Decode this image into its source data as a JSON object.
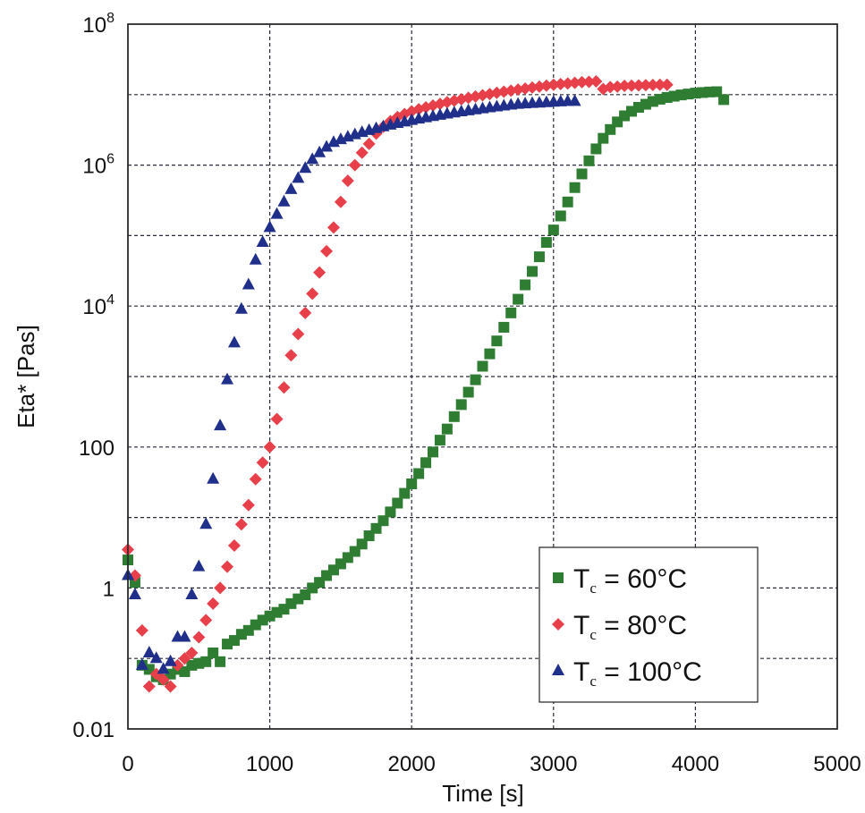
{
  "chart_data": {
    "type": "scatter",
    "title": "",
    "xlabel": "Time [s]",
    "ylabel": "Eta* [Pas]",
    "xlim": [
      0,
      5000
    ],
    "ylim": [
      0.01,
      100000000
    ],
    "yscale": "log",
    "grid": true,
    "legend_position": "bottom-right",
    "x_ticks": [
      "0",
      "1000",
      "2000",
      "3000",
      "4000",
      "5000"
    ],
    "y_ticks": [
      {
        "value": 0.01,
        "label": "0.01"
      },
      {
        "value": 1,
        "label": "1"
      },
      {
        "value": 100,
        "label": "100"
      },
      {
        "value": 10000,
        "base": "10",
        "exp": "4"
      },
      {
        "value": 1000000,
        "base": "10",
        "exp": "6"
      },
      {
        "value": 100000000,
        "base": "10",
        "exp": "8"
      }
    ],
    "series": [
      {
        "name": "60°C",
        "legend": {
          "prefix": "T",
          "sub": "c",
          "text": " = 60°C"
        },
        "marker": "square",
        "color": "#2e7d32",
        "x": [
          0,
          50,
          100,
          150,
          200,
          250,
          300,
          350,
          400,
          450,
          500,
          550,
          600,
          650,
          700,
          750,
          800,
          850,
          900,
          950,
          1000,
          1050,
          1100,
          1150,
          1200,
          1250,
          1300,
          1350,
          1400,
          1450,
          1500,
          1550,
          1600,
          1650,
          1700,
          1750,
          1800,
          1850,
          1900,
          1950,
          2000,
          2050,
          2100,
          2150,
          2200,
          2250,
          2300,
          2350,
          2400,
          2450,
          2500,
          2550,
          2600,
          2650,
          2700,
          2750,
          2800,
          2850,
          2900,
          2950,
          3000,
          3050,
          3100,
          3150,
          3200,
          3250,
          3300,
          3350,
          3400,
          3450,
          3500,
          3550,
          3600,
          3650,
          3700,
          3750,
          3800,
          3850,
          3900,
          3950,
          4000,
          4050,
          4100,
          4150,
          4200
        ],
        "y": [
          2.5,
          1.2,
          0.08,
          0.07,
          0.055,
          0.05,
          0.06,
          0.07,
          0.065,
          0.08,
          0.085,
          0.09,
          0.12,
          0.09,
          0.16,
          0.18,
          0.22,
          0.25,
          0.3,
          0.35,
          0.4,
          0.45,
          0.5,
          0.6,
          0.7,
          0.8,
          1.0,
          1.2,
          1.5,
          1.8,
          2.2,
          2.7,
          3.3,
          4.2,
          5.5,
          7,
          9,
          12,
          16,
          22,
          30,
          42,
          60,
          85,
          125,
          180,
          270,
          400,
          600,
          900,
          1400,
          2100,
          3200,
          5000,
          8000,
          12500,
          20000,
          31000,
          50000,
          80000,
          120000,
          190000,
          300000,
          480000,
          750000,
          1150000,
          1700000,
          2400000,
          3200000,
          4100000,
          5000000,
          5800000,
          6600000,
          7300000,
          8000000,
          8600000,
          9100000,
          9500000,
          9900000,
          10200000,
          10500000,
          10700000,
          10900000,
          11000000,
          8500000
        ]
      },
      {
        "name": "80°C",
        "legend": {
          "prefix": "T",
          "sub": "c",
          "text": " = 80°C"
        },
        "marker": "diamond",
        "color": "#e8404a",
        "x": [
          0,
          50,
          100,
          150,
          200,
          250,
          300,
          350,
          400,
          450,
          500,
          550,
          600,
          650,
          700,
          750,
          800,
          850,
          900,
          950,
          1000,
          1050,
          1100,
          1150,
          1200,
          1250,
          1300,
          1350,
          1400,
          1450,
          1500,
          1550,
          1600,
          1650,
          1700,
          1750,
          1800,
          1850,
          1900,
          1950,
          2000,
          2050,
          2100,
          2150,
          2200,
          2250,
          2300,
          2350,
          2400,
          2450,
          2500,
          2550,
          2600,
          2650,
          2700,
          2750,
          2800,
          2850,
          2900,
          2950,
          3000,
          3050,
          3100,
          3150,
          3200,
          3250,
          3300,
          3350,
          3400,
          3450,
          3500,
          3550,
          3600,
          3650,
          3700,
          3750,
          3800
        ],
        "y": [
          3.5,
          1.5,
          0.25,
          0.04,
          0.06,
          0.05,
          0.04,
          0.08,
          0.1,
          0.12,
          0.2,
          0.35,
          0.6,
          1.0,
          2.0,
          4.0,
          8.0,
          15,
          35,
          60,
          100,
          250,
          700,
          2000,
          4000,
          8000,
          15000,
          30000,
          60000,
          130000,
          300000,
          600000,
          1000000,
          1500000,
          2000000,
          2800000,
          3500000,
          4200000,
          4800000,
          5300000,
          5800000,
          6200000,
          6600000,
          7000000,
          7400000,
          7800000,
          8200000,
          8600000,
          9000000,
          9400000,
          9800000,
          10200000,
          10600000,
          11000000,
          11400000,
          11800000,
          12200000,
          12600000,
          13000000,
          13400000,
          13800000,
          14100000,
          14400000,
          14700000,
          15000000,
          15200000,
          15400000,
          12000000,
          12800000,
          13000000,
          13300000,
          13400000,
          13500000,
          13600000,
          13700000,
          13800000,
          13800000
        ]
      },
      {
        "name": "100°C",
        "legend": {
          "prefix": "T",
          "sub": "c",
          "text": " = 100°C"
        },
        "marker": "triangle",
        "color": "#1f2f8a",
        "x": [
          0,
          50,
          100,
          150,
          200,
          250,
          300,
          350,
          400,
          450,
          500,
          550,
          600,
          650,
          700,
          750,
          800,
          850,
          900,
          950,
          1000,
          1050,
          1100,
          1150,
          1200,
          1250,
          1300,
          1350,
          1400,
          1450,
          1500,
          1550,
          1600,
          1650,
          1700,
          1750,
          1800,
          1850,
          1900,
          1950,
          2000,
          2050,
          2100,
          2150,
          2200,
          2250,
          2300,
          2350,
          2400,
          2450,
          2500,
          2550,
          2600,
          2650,
          2700,
          2750,
          2800,
          2850,
          2900,
          2950,
          3000,
          3050,
          3100,
          3150
        ],
        "y": [
          1.5,
          0.8,
          0.08,
          0.12,
          0.1,
          0.07,
          0.09,
          0.2,
          0.2,
          0.8,
          2.0,
          8.0,
          35,
          200,
          900,
          3000,
          9000,
          20000,
          45000,
          80000,
          130000,
          200000,
          300000,
          450000,
          650000,
          900000,
          1200000,
          1500000,
          1800000,
          2100000,
          2300000,
          2500000,
          2700000,
          2900000,
          3100000,
          3300000,
          3500000,
          3700000,
          3900000,
          4100000,
          4300000,
          4500000,
          4700000,
          4900000,
          5100000,
          5300000,
          5500000,
          5700000,
          5900000,
          6100000,
          6300000,
          6500000,
          6700000,
          6900000,
          7100000,
          7300000,
          7400000,
          7500000,
          7600000,
          7700000,
          7800000,
          7900000,
          8000000,
          8000000
        ]
      }
    ]
  }
}
